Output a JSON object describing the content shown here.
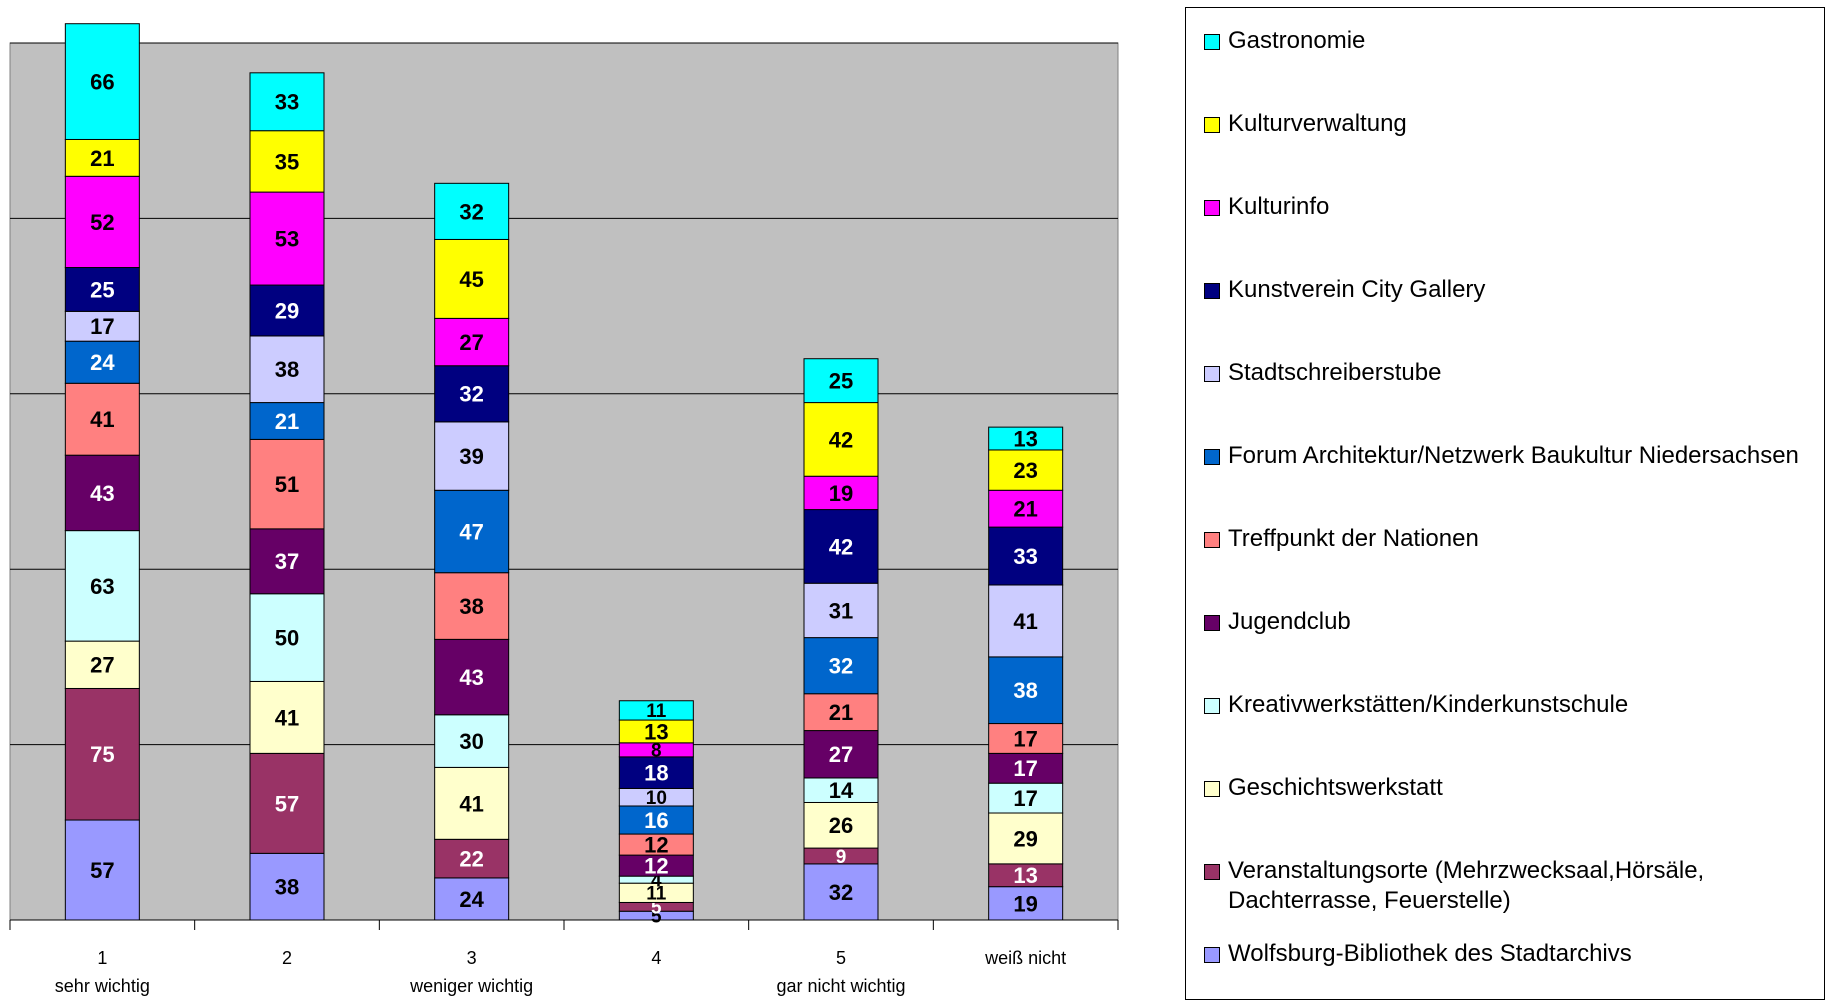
{
  "chart_data": {
    "type": "bar",
    "stacked": true,
    "categories": [
      "1",
      "2",
      "3",
      "4",
      "5",
      "weiß nicht"
    ],
    "category_sublabels": [
      "sehr wichtig",
      "",
      "weniger wichtig",
      "",
      "gar nicht wichtig",
      ""
    ],
    "ylim": [
      0,
      500
    ],
    "y_gridlines": [
      100,
      200,
      300,
      400,
      500
    ],
    "grid": true,
    "legend_placement": "right",
    "series": [
      {
        "name": "Wolfsburg-Bibliothek des Stadtarchivs",
        "color": "#9999ff",
        "values": [
          57,
          38,
          24,
          5,
          32,
          19
        ]
      },
      {
        "name": "Veranstaltungsorte (Mehrzwecksaal,Hörsäle, Dachterrasse, Feuerstelle)",
        "color": "#993366",
        "values": [
          75,
          57,
          22,
          5,
          9,
          13
        ]
      },
      {
        "name": "Geschichtswerkstatt",
        "color": "#ffffcc",
        "values": [
          27,
          41,
          41,
          11,
          26,
          29
        ]
      },
      {
        "name": "Kreativwerkstätten/Kinderkunstschule",
        "color": "#ccffff",
        "values": [
          63,
          50,
          30,
          4,
          14,
          17
        ]
      },
      {
        "name": "Jugendclub",
        "color": "#660066",
        "values": [
          43,
          37,
          43,
          12,
          27,
          17
        ]
      },
      {
        "name": "Treffpunkt der Nationen",
        "color": "#ff8080",
        "values": [
          41,
          51,
          38,
          12,
          21,
          17
        ]
      },
      {
        "name": "Forum Architektur/Netzwerk Baukultur Niedersachsen",
        "color": "#0066cc",
        "values": [
          24,
          21,
          47,
          16,
          32,
          38
        ]
      },
      {
        "name": "Stadtschreiberstube",
        "color": "#ccccff",
        "values": [
          17,
          38,
          39,
          10,
          31,
          41
        ]
      },
      {
        "name": "Kunstverein City Gallery",
        "color": "#000080",
        "values": [
          25,
          29,
          32,
          18,
          42,
          33
        ]
      },
      {
        "name": "Kulturinfo",
        "color": "#ff00ff",
        "values": [
          52,
          53,
          27,
          8,
          19,
          21
        ]
      },
      {
        "name": "Kulturverwaltung",
        "color": "#ffff00",
        "values": [
          21,
          35,
          45,
          13,
          42,
          23
        ]
      },
      {
        "name": "Gastronomie",
        "color": "#00ffff",
        "values": [
          66,
          33,
          32,
          11,
          25,
          13
        ]
      }
    ],
    "dark_series": [
      "Veranstaltungsorte (Mehrzwecksaal,Hörsäle, Dachterrasse, Feuerstelle)",
      "Jugendclub",
      "Forum Architektur/Netzwerk Baukultur Niedersachsen",
      "Kunstverein City Gallery"
    ],
    "plot_background": "#c0c0c0"
  },
  "legend": {
    "items": [
      "Gastronomie",
      "Kulturverwaltung",
      "Kulturinfo",
      "Kunstverein City Gallery",
      "Stadtschreiberstube",
      "Forum Architektur/Netzwerk Baukultur Niedersachsen",
      "Treffpunkt der Nationen",
      "Jugendclub",
      "Kreativwerkstätten/Kinderkunstschule",
      "Geschichtswerkstatt",
      "Veranstaltungsorte (Mehrzwecksaal,Hörsäle, Dachterrasse, Feuerstelle)",
      "Wolfsburg-Bibliothek des Stadtarchivs"
    ]
  }
}
